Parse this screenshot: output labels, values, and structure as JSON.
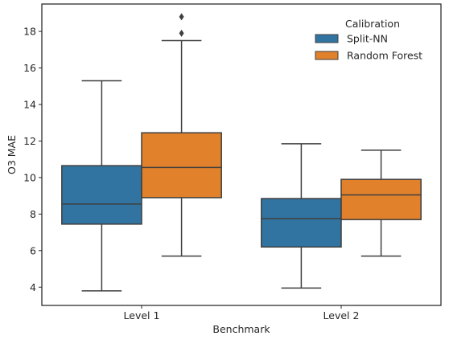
{
  "chart_data": {
    "type": "box",
    "xlabel": "Benchmark",
    "ylabel": "O3 MAE",
    "ylim": [
      3.0,
      19.5
    ],
    "yticks": [
      4,
      6,
      8,
      10,
      12,
      14,
      16,
      18
    ],
    "grid": false,
    "legend": {
      "title": "Calibration",
      "placement": "top-right"
    },
    "categories": [
      "Level 1",
      "Level 2"
    ],
    "series": [
      {
        "name": "Split-NN",
        "color": "#3274a1",
        "boxes": [
          {
            "category": "Level 1",
            "whisker_low": 3.8,
            "q1": 7.45,
            "median": 8.55,
            "q3": 10.65,
            "whisker_high": 15.3,
            "outliers": []
          },
          {
            "category": "Level 2",
            "whisker_low": 3.95,
            "q1": 6.2,
            "median": 7.75,
            "q3": 8.85,
            "whisker_high": 11.85,
            "outliers": []
          }
        ]
      },
      {
        "name": "Random Forest",
        "color": "#e1812c",
        "boxes": [
          {
            "category": "Level 1",
            "whisker_low": 5.7,
            "q1": 8.9,
            "median": 10.55,
            "q3": 12.45,
            "whisker_high": 17.5,
            "outliers": [
              17.9,
              18.8
            ]
          },
          {
            "category": "Level 2",
            "whisker_low": 5.7,
            "q1": 7.7,
            "median": 9.05,
            "q3": 9.9,
            "whisker_high": 11.5,
            "outliers": []
          }
        ]
      }
    ]
  }
}
